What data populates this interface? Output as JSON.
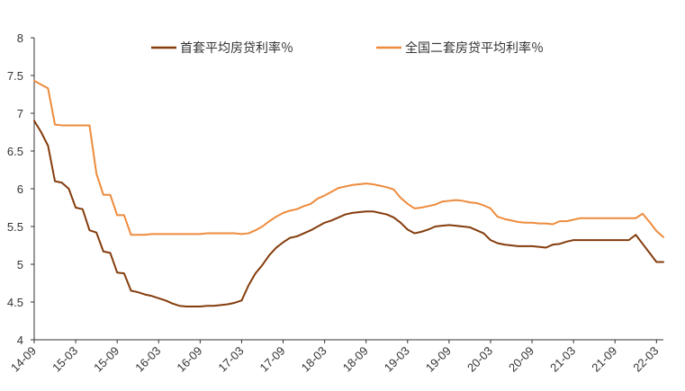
{
  "chart_data": {
    "type": "line",
    "title": "",
    "xlabel": "",
    "ylabel": "",
    "ylim": [
      4,
      8
    ],
    "yticks": [
      4,
      4.5,
      5,
      5.5,
      6,
      6.5,
      7,
      7.5,
      8
    ],
    "ytick_labels": [
      "4",
      "4.5",
      "5",
      "5.5",
      "6",
      "6.5",
      "7",
      "7.5",
      "8"
    ],
    "xticks": [
      "14-09",
      "15-03",
      "15-09",
      "16-03",
      "16-09",
      "17-03",
      "17-09",
      "18-03",
      "18-09",
      "19-03",
      "19-09",
      "20-03",
      "20-09",
      "21-03",
      "21-09",
      "22-03"
    ],
    "grid": false,
    "legend_position": "top",
    "colors": {
      "first_home": "#843C0C",
      "national": "#ED8B3C"
    },
    "series": [
      {
        "name": "首套平均房贷利率％",
        "color": "#843C0C",
        "x": [
          "14-09",
          "14-10",
          "14-11",
          "14-12",
          "15-01",
          "15-02",
          "15-03",
          "15-04",
          "15-05",
          "15-06",
          "15-07",
          "15-08",
          "15-09",
          "15-10",
          "15-11",
          "15-12",
          "16-01",
          "16-02",
          "16-03",
          "16-04",
          "16-05",
          "16-06",
          "16-07",
          "16-08",
          "16-09",
          "16-10",
          "16-11",
          "16-12",
          "17-01",
          "17-02",
          "17-03",
          "17-04",
          "17-05",
          "17-06",
          "17-07",
          "17-08",
          "17-09",
          "17-10",
          "17-11",
          "17-12",
          "18-01",
          "18-02",
          "18-03",
          "18-04",
          "18-05",
          "18-06",
          "18-07",
          "18-08",
          "18-09",
          "18-10",
          "18-11",
          "18-12",
          "19-01",
          "19-02",
          "19-03",
          "19-04",
          "19-05",
          "19-06",
          "19-07",
          "19-08",
          "19-09",
          "19-10",
          "19-11",
          "19-12",
          "20-01",
          "20-02",
          "20-03",
          "20-04",
          "20-05",
          "20-06",
          "20-07",
          "20-08",
          "20-09",
          "20-10",
          "20-11",
          "20-12",
          "21-01",
          "21-02",
          "21-03",
          "21-04",
          "21-05",
          "21-06",
          "21-07",
          "21-08",
          "21-09",
          "21-10",
          "21-11",
          "21-12",
          "22-01",
          "22-02",
          "22-03",
          "22-04"
        ],
        "values": [
          6.9,
          6.75,
          6.57,
          6.1,
          6.08,
          6.0,
          5.75,
          5.73,
          5.45,
          5.42,
          5.17,
          5.15,
          4.89,
          4.88,
          4.65,
          4.63,
          4.6,
          4.58,
          4.55,
          4.52,
          4.48,
          4.45,
          4.44,
          4.44,
          4.44,
          4.45,
          4.45,
          4.46,
          4.47,
          4.49,
          4.52,
          4.72,
          4.88,
          4.99,
          5.12,
          5.22,
          5.29,
          5.35,
          5.37,
          5.41,
          5.45,
          5.5,
          5.55,
          5.58,
          5.62,
          5.66,
          5.68,
          5.69,
          5.7,
          5.7,
          5.68,
          5.66,
          5.62,
          5.55,
          5.46,
          5.41,
          5.43,
          5.46,
          5.5,
          5.51,
          5.52,
          5.51,
          5.5,
          5.49,
          5.45,
          5.41,
          5.32,
          5.28,
          5.26,
          5.25,
          5.24,
          5.24,
          5.24,
          5.23,
          5.22,
          5.26,
          5.27,
          5.3,
          5.32,
          5.32,
          5.32,
          5.32,
          5.32,
          5.32,
          5.32,
          5.32,
          5.32,
          5.39,
          5.27,
          5.15,
          5.03,
          5.03
        ]
      },
      {
        "name": "全国二套房贷平均利率％",
        "color": "#ED8B3C",
        "x": [
          "14-09",
          "14-10",
          "14-11",
          "14-12",
          "15-01",
          "15-02",
          "15-03",
          "15-04",
          "15-05",
          "15-06",
          "15-07",
          "15-08",
          "15-09",
          "15-10",
          "15-11",
          "15-12",
          "16-01",
          "16-02",
          "16-03",
          "16-04",
          "16-05",
          "16-06",
          "16-07",
          "16-08",
          "16-09",
          "16-10",
          "16-11",
          "16-12",
          "17-01",
          "17-02",
          "17-03",
          "17-04",
          "17-05",
          "17-06",
          "17-07",
          "17-08",
          "17-09",
          "17-10",
          "17-11",
          "17-12",
          "18-01",
          "18-02",
          "18-03",
          "18-04",
          "18-05",
          "18-06",
          "18-07",
          "18-08",
          "18-09",
          "18-10",
          "18-11",
          "18-12",
          "19-01",
          "19-02",
          "19-03",
          "19-04",
          "19-05",
          "19-06",
          "19-07",
          "19-08",
          "19-09",
          "19-10",
          "19-11",
          "19-12",
          "20-01",
          "20-02",
          "20-03",
          "20-04",
          "20-05",
          "20-06",
          "20-07",
          "20-08",
          "20-09",
          "20-10",
          "20-11",
          "20-12",
          "21-01",
          "21-02",
          "21-03",
          "21-04",
          "21-05",
          "21-06",
          "21-07",
          "21-08",
          "21-09",
          "21-10",
          "21-11",
          "21-12",
          "22-01",
          "22-02",
          "22-03",
          "22-04"
        ],
        "values": [
          7.43,
          7.38,
          7.33,
          6.85,
          6.84,
          6.84,
          6.84,
          6.84,
          6.84,
          6.2,
          5.92,
          5.92,
          5.65,
          5.65,
          5.39,
          5.39,
          5.39,
          5.4,
          5.4,
          5.4,
          5.4,
          5.4,
          5.4,
          5.4,
          5.4,
          5.41,
          5.41,
          5.41,
          5.41,
          5.41,
          5.4,
          5.41,
          5.45,
          5.5,
          5.57,
          5.63,
          5.68,
          5.71,
          5.73,
          5.77,
          5.8,
          5.87,
          5.91,
          5.96,
          6.01,
          6.03,
          6.05,
          6.06,
          6.07,
          6.06,
          6.04,
          6.02,
          5.99,
          5.88,
          5.8,
          5.74,
          5.75,
          5.77,
          5.79,
          5.83,
          5.84,
          5.85,
          5.84,
          5.82,
          5.81,
          5.78,
          5.74,
          5.63,
          5.6,
          5.58,
          5.56,
          5.55,
          5.55,
          5.54,
          5.54,
          5.53,
          5.57,
          5.57,
          5.59,
          5.61,
          5.61,
          5.61,
          5.61,
          5.61,
          5.61,
          5.61,
          5.61,
          5.61,
          5.67,
          5.56,
          5.44,
          5.36
        ]
      }
    ]
  }
}
